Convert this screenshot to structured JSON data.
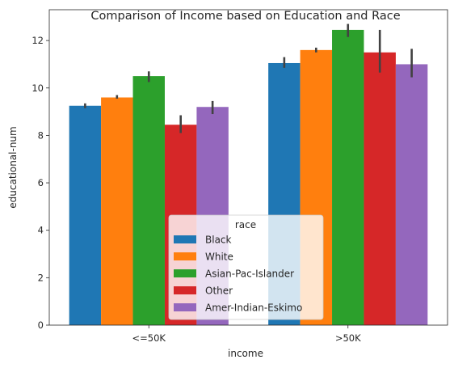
{
  "chart_data": {
    "type": "bar",
    "title": "Comparison of Income based on Education and Race",
    "xlabel": "income",
    "ylabel": "educational-num",
    "categories": [
      "<=50K",
      ">50K"
    ],
    "ylim": [
      0,
      13.3
    ],
    "yticks": [
      0,
      2,
      4,
      6,
      8,
      10,
      12
    ],
    "grid": false,
    "legend": {
      "title": "race",
      "placement": "lower center"
    },
    "series": [
      {
        "name": "Black",
        "color": "#1f77b4",
        "values": [
          9.25,
          11.05
        ],
        "ci": [
          [
            9.15,
            9.35
          ],
          [
            10.85,
            11.3
          ]
        ]
      },
      {
        "name": "White",
        "color": "#ff7f0e",
        "values": [
          9.6,
          11.6
        ],
        "ci": [
          [
            9.55,
            9.7
          ],
          [
            11.5,
            11.7
          ]
        ]
      },
      {
        "name": "Asian-Pac-Islander",
        "color": "#2ca02c",
        "values": [
          10.5,
          12.45
        ],
        "ci": [
          [
            10.25,
            10.7
          ],
          [
            12.15,
            12.7
          ]
        ]
      },
      {
        "name": "Other",
        "color": "#d62728",
        "values": [
          8.45,
          11.5
        ],
        "ci": [
          [
            8.1,
            8.85
          ],
          [
            10.65,
            12.45
          ]
        ]
      },
      {
        "name": "Amer-Indian-Eskimo",
        "color": "#9467bd",
        "values": [
          9.2,
          11.0
        ],
        "ci": [
          [
            8.9,
            9.45
          ],
          [
            10.45,
            11.65
          ]
        ]
      }
    ]
  }
}
